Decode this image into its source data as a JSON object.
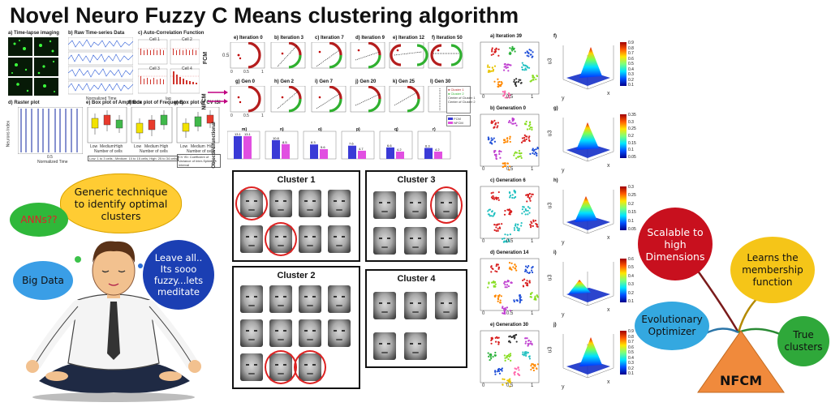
{
  "title": "Novel Neuro Fuzzy C Means clustering algorithm",
  "topleft": {
    "a": "a) Time-lapse imaging",
    "b": "b) Raw Time-series Data",
    "c": "c) Auto-Correlation Function",
    "d": "d) Raster plot",
    "e": "e) Box plot of Amplitude",
    "f": "f) Box plot of Frequency",
    "g": "g) Box plot of CV ISI",
    "xlab_norm_time": "Normalized Time",
    "xlab_lag": "lag",
    "cells": [
      "Cell 1",
      "Cell 2",
      "Cell 3",
      "Cell 4"
    ],
    "neurons_label": "Neurons Index",
    "raster_tick": "0.5",
    "box_x": [
      "Low",
      "Medium",
      "High"
    ],
    "box_xlab": "Number of cells",
    "legend_cells": "Low: 1 to 3 cells ; Medium: 10 to 15 cells; High: 25 to 34 cells",
    "legend_cv": "CV ISI: Coefficient of Variance of Inter-Spiking Interval"
  },
  "iterations": {
    "fcm_label": "FCM",
    "nfcm_label": "NFCM",
    "fcm_titles": [
      "e) Iteration 0",
      "b) Iteration 3",
      "c) Iteration 7",
      "d) Iteration 9",
      "e) Iteration 12",
      "f) Iteration 50"
    ],
    "nfcm_titles": [
      "g) Gen 0",
      "h) Gen 2",
      "i) Gen 7",
      "j) Gen 20",
      "k) Gen 25",
      "l) Gen 30"
    ],
    "tick_0": "0",
    "tick_05": "0.5",
    "tick_1": "1",
    "legend": [
      "Cluster 1",
      "Cluster 2",
      "Center of Cluster 1",
      "Center of Cluster 2"
    ],
    "bar_legend": [
      "FCM",
      "NFCM"
    ]
  },
  "objective": {
    "ylabel": "Objective functional",
    "panels": [
      {
        "label": "m)",
        "values": [
          "13.1",
          "13.1"
        ]
      },
      {
        "label": "n)",
        "values": [
          "10.8",
          "8.5"
        ]
      },
      {
        "label": "o)",
        "values": [
          "8.3",
          "5.6"
        ]
      },
      {
        "label": "p)",
        "values": [
          "7.6",
          "4.7"
        ]
      },
      {
        "label": "q)",
        "values": [
          "6.6",
          "4.2"
        ]
      },
      {
        "label": "r)",
        "values": [
          "6.3",
          "4.2"
        ]
      }
    ]
  },
  "clusters": {
    "c1": "Cluster 1",
    "c2": "Cluster 2",
    "c3": "Cluster 3",
    "c4": "Cluster 4"
  },
  "scatter": {
    "titles": [
      "a) Iteration 39",
      "b) Generation 0",
      "c) Generation 6",
      "d) Generation 14",
      "e) Generation 30"
    ],
    "ticks": [
      "0",
      "0.5",
      "1"
    ]
  },
  "surfaces": {
    "titles": [
      "f)",
      "g)",
      "h)",
      "i)",
      "j)"
    ],
    "axis_u3": "u3",
    "axis_x": "x",
    "axis_y": "y",
    "colorbars": [
      [
        "0.9",
        "0.8",
        "0.7",
        "0.6",
        "0.5",
        "0.4",
        "0.3",
        "0.2",
        "0.1"
      ],
      [
        "0.35",
        "0.3",
        "0.25",
        "0.2",
        "0.15",
        "0.1",
        "0.05"
      ],
      [
        "0.3",
        "0.25",
        "0.2",
        "0.15",
        "0.1",
        "0.05"
      ],
      [
        "0.6",
        "0.5",
        "0.4",
        "0.3",
        "0.2",
        "0.1"
      ],
      [
        "0.9",
        "0.8",
        "0.7",
        "0.6",
        "0.5",
        "0.4",
        "0.3",
        "0.2",
        "0.1"
      ]
    ]
  },
  "cartoon": {
    "bubble_main": "Generic technique to identify optimal clusters",
    "bubble_anns": "ANNs??",
    "bubble_big": "Big Data",
    "bubble_fuzzy": "Leave all.. Its sooo fuzzy...lets meditate"
  },
  "tree": {
    "root": "NFCM",
    "scalable": "Scalable to high Dimensions",
    "learns": "Learns the membership function",
    "evolution": "Evolutionary Optimizer",
    "true": "True clusters",
    "colors": {
      "scalable": "#c8101e",
      "learns": "#f5c518",
      "evolution": "#34a8e0",
      "true": "#2fa83a",
      "root": "#f08a3c"
    }
  }
}
